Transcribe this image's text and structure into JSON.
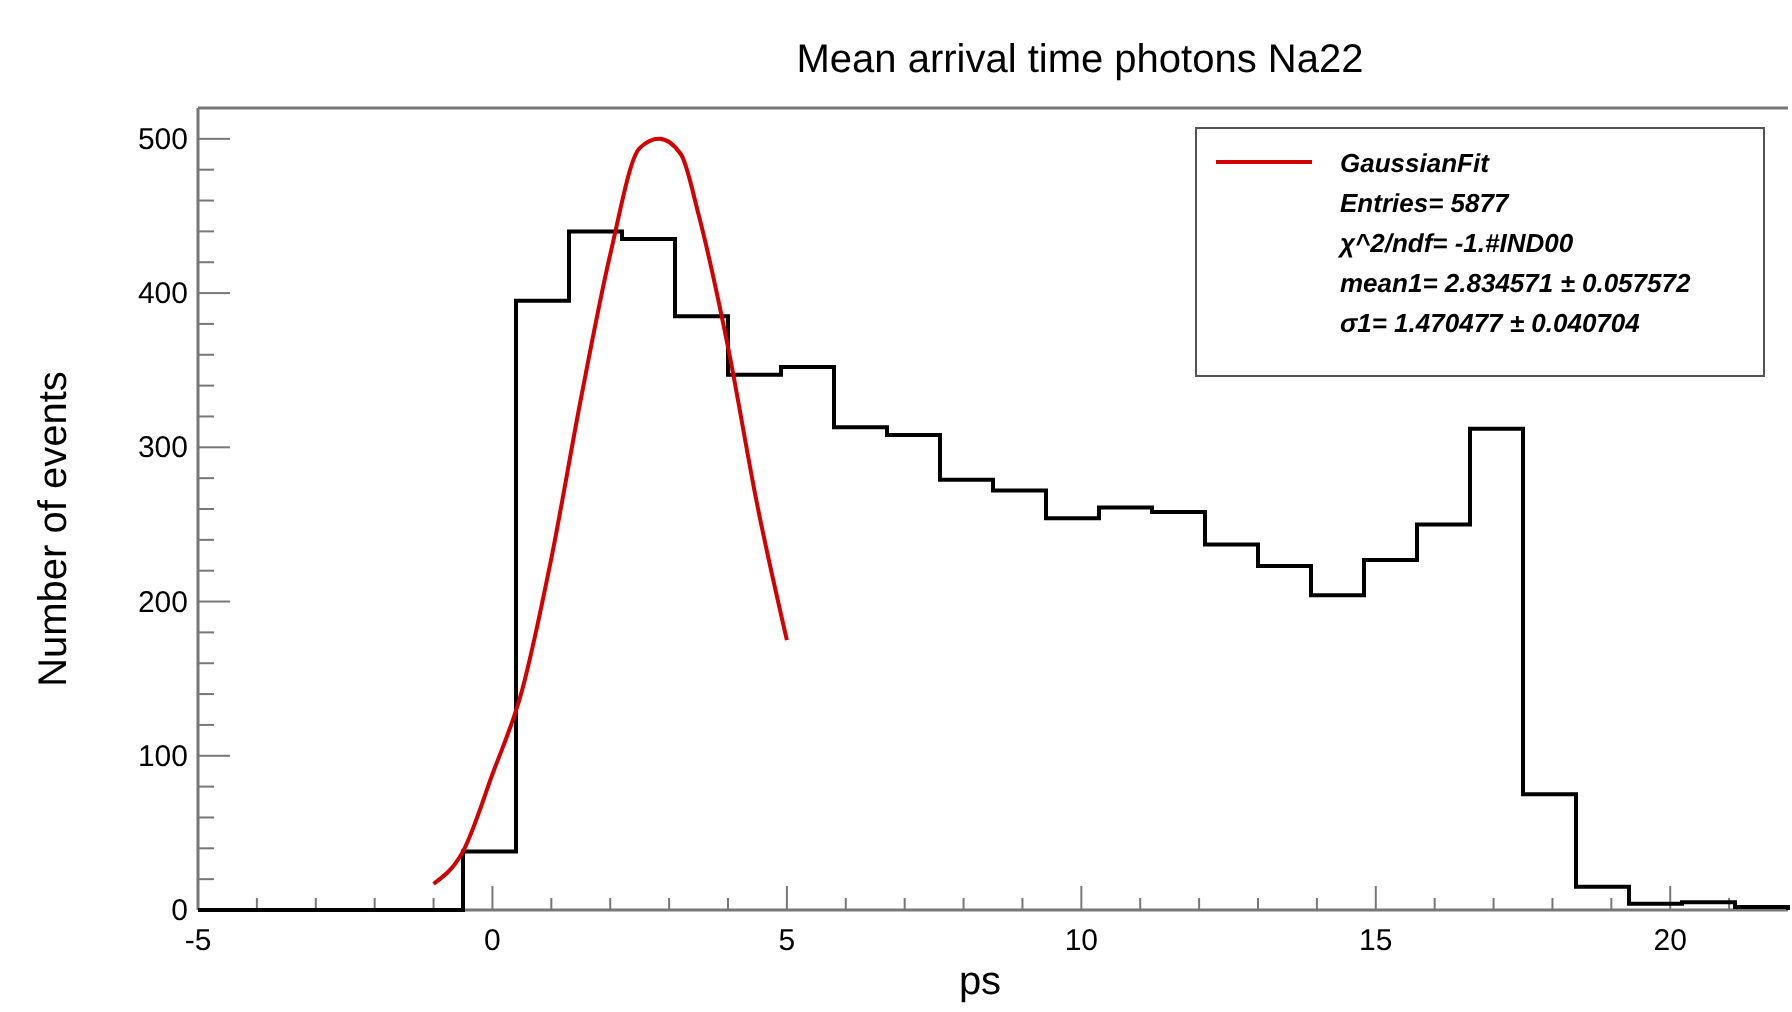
{
  "chart_data": {
    "type": "histogram",
    "title": "Mean arrival time photons Na22",
    "xlabel": "ps",
    "ylabel": "Number of events",
    "bins": [
      -5,
      -4.1,
      -3.2,
      -2.3,
      -1.4,
      -0.5,
      0.4,
      1.3,
      2.2,
      3.1,
      4.0,
      4.9,
      5.8,
      6.7,
      7.6,
      8.5,
      9.4,
      10.3,
      11.2,
      12.1,
      13.0,
      13.9,
      14.8,
      15.7,
      16.6,
      17.5,
      18.4,
      19.3,
      20.2,
      21.1,
      22.0
    ],
    "series": [
      {
        "color": "#000000",
        "values": [
          0,
          0,
          0,
          0,
          0,
          38,
          395,
          440,
          435,
          385,
          347,
          352,
          313,
          308,
          279,
          272,
          254,
          261,
          258,
          237,
          223,
          204,
          227,
          250,
          312,
          75,
          15,
          4,
          5,
          2
        ]
      },
      {
        "type": "line",
        "name": "GaussianFit",
        "color": "#d40000",
        "x": [
          -1,
          -0.5,
          0,
          0.5,
          1,
          1.5,
          2,
          2.5,
          2.83,
          3.2,
          3.5,
          4,
          4.5,
          5
        ],
        "values": [
          17,
          38,
          88,
          142,
          228,
          331,
          425,
          494,
          500,
          490,
          451,
          365,
          262,
          175
        ]
      }
    ],
    "xlim": [
      -5,
      22
    ],
    "ylim": [
      0,
      520
    ],
    "xticks": [
      -5,
      {
        "value": -4,
        "label": null
      },
      {
        "value": -3,
        "label": null
      },
      {
        "value": -2,
        "label": null
      },
      {
        "value": -1,
        "label": null
      },
      0,
      {
        "value": 1,
        "label": null
      },
      {
        "value": 2,
        "label": null
      },
      {
        "value": 3,
        "label": null
      },
      {
        "value": 4,
        "label": null
      },
      5,
      {
        "value": 6,
        "label": null
      },
      {
        "value": 7,
        "label": null
      },
      {
        "value": 8,
        "label": null
      },
      {
        "value": 9,
        "label": null
      },
      10,
      {
        "value": 11,
        "label": null
      },
      {
        "value": 12,
        "label": null
      },
      {
        "value": 13,
        "label": null
      },
      {
        "value": 14,
        "label": null
      },
      15,
      {
        "value": 16,
        "label": null
      },
      {
        "value": 17,
        "label": null
      },
      {
        "value": 18,
        "label": null
      },
      {
        "value": 19,
        "label": null
      },
      20,
      {
        "value": 21,
        "label": null
      }
    ],
    "yticks": [
      0,
      {
        "value": 20,
        "label": null
      },
      {
        "value": 40,
        "label": null
      },
      {
        "value": 60,
        "label": null
      },
      {
        "value": 80,
        "label": null
      },
      100,
      {
        "value": 120,
        "label": null
      },
      {
        "value": 140,
        "label": null
      },
      {
        "value": 160,
        "label": null
      },
      {
        "value": 180,
        "label": null
      },
      200,
      {
        "value": 220,
        "label": null
      },
      {
        "value": 240,
        "label": null
      },
      {
        "value": 260,
        "label": null
      },
      {
        "value": 280,
        "label": null
      },
      300,
      {
        "value": 320,
        "label": null
      },
      {
        "value": 340,
        "label": null
      },
      {
        "value": 360,
        "label": null
      },
      {
        "value": 380,
        "label": null
      },
      400,
      {
        "value": 420,
        "label": null
      },
      {
        "value": 440,
        "label": null
      },
      {
        "value": 460,
        "label": null
      },
      {
        "value": 480,
        "label": null
      },
      500
    ],
    "legend": "top right",
    "grid": false,
    "annotations": [
      "Entries= 5877",
      "χ^2/ndf= -1.#IND00",
      "mean1= 2.834571 ± 0.057572",
      "σ1= 1.470477 ± 0.040704"
    ]
  }
}
